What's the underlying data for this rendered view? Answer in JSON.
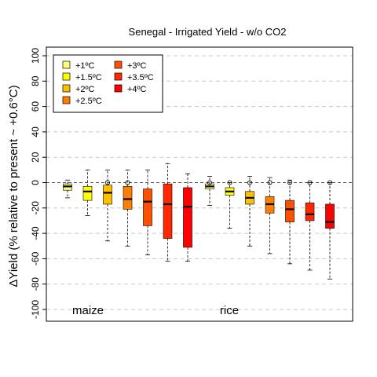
{
  "chart_data": {
    "type": "boxplot",
    "title": "Senegal - Irrigated Yield - w/o CO2",
    "ylabel": "ΔYield (% relative to present ~ +0.6°C)",
    "ylim": [
      -105,
      105
    ],
    "yticks": [
      -100,
      -80,
      -60,
      -40,
      -20,
      0,
      20,
      40,
      60,
      80,
      100
    ],
    "grid": true,
    "legend_position": "top-left",
    "legend": [
      {
        "label": "+1ºC",
        "color": "#FFFF7F"
      },
      {
        "label": "+1.5ºC",
        "color": "#FFFF00"
      },
      {
        "label": "+2ºC",
        "color": "#FFC000"
      },
      {
        "label": "+2.5ºC",
        "color": "#FF8000"
      },
      {
        "label": "+3ºC",
        "color": "#FF5000"
      },
      {
        "label": "+3.5ºC",
        "color": "#FF2800"
      },
      {
        "label": "+4ºC",
        "color": "#FF0000"
      }
    ],
    "groups": [
      {
        "name": "maize",
        "boxes": [
          {
            "color": "#FFFF7F",
            "whisker_low": -12,
            "q1": -6,
            "median": -3,
            "q3": -1,
            "whisker_high": 2,
            "outliers": []
          },
          {
            "color": "#FFFF00",
            "whisker_low": -26,
            "q1": -14,
            "median": -7,
            "q3": -3,
            "whisker_high": 10,
            "outliers": []
          },
          {
            "color": "#FFC000",
            "whisker_low": -46,
            "q1": -17,
            "median": -8,
            "q3": -2,
            "whisker_high": 10,
            "outliers": [
              0
            ]
          },
          {
            "color": "#FF8000",
            "whisker_low": -50,
            "q1": -21,
            "median": -13,
            "q3": -3,
            "whisker_high": 10,
            "outliers": [
              0
            ]
          },
          {
            "color": "#FF5000",
            "whisker_low": -57,
            "q1": -34,
            "median": -15,
            "q3": -5,
            "whisker_high": 10,
            "outliers": []
          },
          {
            "color": "#FF2800",
            "whisker_low": -62,
            "q1": -44,
            "median": -17,
            "q3": -1,
            "whisker_high": 15,
            "outliers": []
          },
          {
            "color": "#FF0000",
            "whisker_low": -62,
            "q1": -51,
            "median": -19,
            "q3": -4,
            "whisker_high": 7,
            "outliers": []
          }
        ]
      },
      {
        "name": "rice",
        "boxes": [
          {
            "color": "#FFFF7F",
            "whisker_low": -18,
            "q1": -5,
            "median": -3,
            "q3": -1,
            "whisker_high": 5,
            "outliers": [
              0
            ]
          },
          {
            "color": "#FFFF00",
            "whisker_low": -36,
            "q1": -10,
            "median": -7,
            "q3": -4,
            "whisker_high": 0,
            "outliers": [
              0
            ]
          },
          {
            "color": "#FFC000",
            "whisker_low": -50,
            "q1": -17,
            "median": -12,
            "q3": -7,
            "whisker_high": 5,
            "outliers": [
              0
            ]
          },
          {
            "color": "#FF8000",
            "whisker_low": -56,
            "q1": -24,
            "median": -17,
            "q3": -11,
            "whisker_high": 4,
            "outliers": [
              0
            ]
          },
          {
            "color": "#FF5000",
            "whisker_low": -64,
            "q1": -31,
            "median": -21,
            "q3": -14,
            "whisker_high": 2,
            "outliers": [
              0
            ]
          },
          {
            "color": "#FF2800",
            "whisker_low": -69,
            "q1": -30,
            "median": -25,
            "q3": -16,
            "whisker_high": 0,
            "outliers": [
              0
            ]
          },
          {
            "color": "#FF0000",
            "whisker_low": -76,
            "q1": -36,
            "median": -31,
            "q3": -17,
            "whisker_high": 0,
            "outliers": [
              0
            ]
          }
        ]
      }
    ]
  }
}
